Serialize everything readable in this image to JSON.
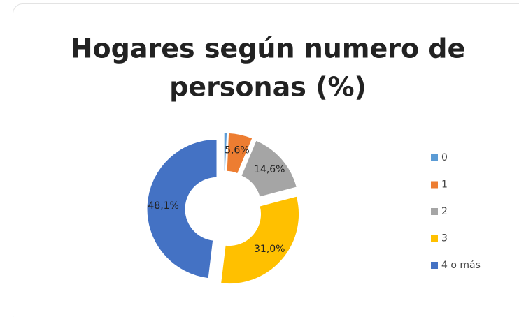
{
  "chart_data": {
    "type": "pie",
    "donut": true,
    "title": [
      "Hogares según numero de",
      "personas (%)"
    ],
    "categories": [
      "0",
      "1",
      "2",
      "3",
      "4 o más"
    ],
    "values": [
      0.7,
      5.6,
      14.6,
      31.0,
      48.1
    ],
    "value_labels": [
      null,
      "5,6%",
      "14,6%",
      "31,0%",
      "48,1%"
    ],
    "colors": [
      "#5b9bd5",
      "#ed7d31",
      "#a5a5a5",
      "#ffc000",
      "#4472c4"
    ],
    "legend": "right"
  }
}
